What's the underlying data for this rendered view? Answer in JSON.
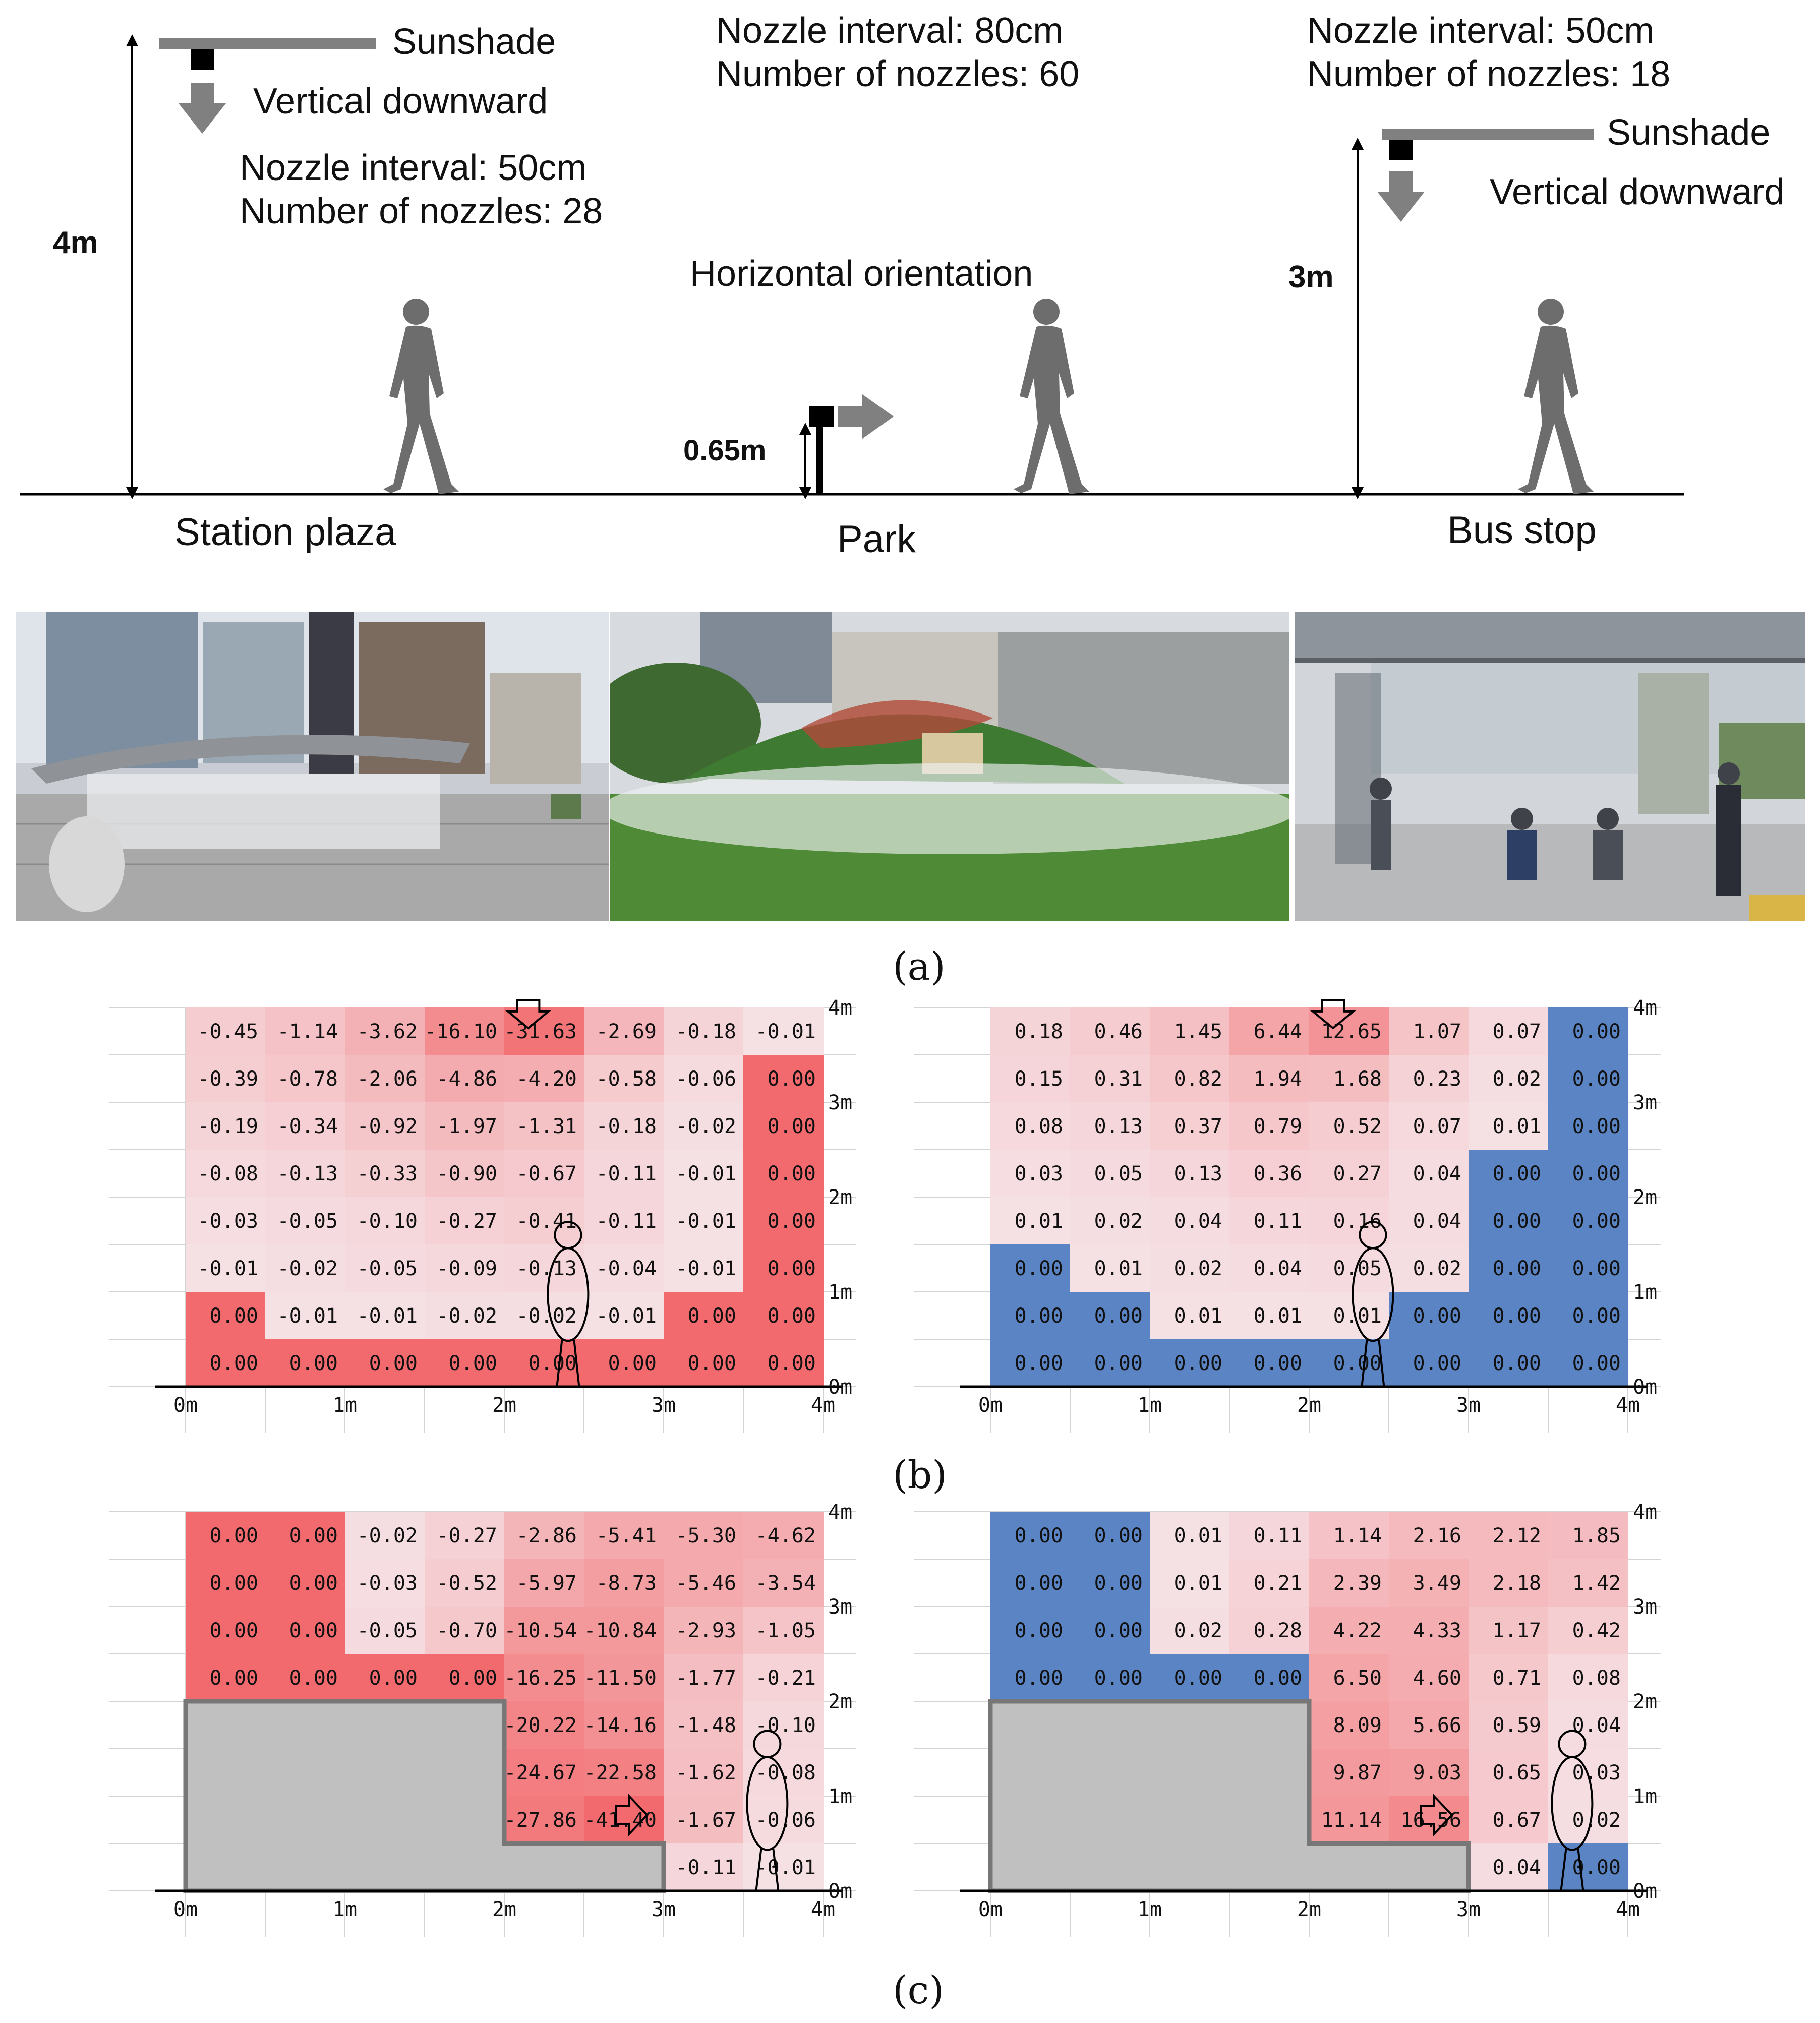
{
  "diagram": {
    "station": {
      "sunshade": "Sunshade",
      "direction": "Vertical downward",
      "interval": "Nozzle interval: 50cm",
      "count": "Number of nozzles: 28",
      "height": "4m",
      "name": "Station plaza"
    },
    "park": {
      "interval": "Nozzle interval: 80cm",
      "count": "Number of nozzles: 60",
      "direction": "Horizontal orientation",
      "height": "0.65m",
      "name": "Park"
    },
    "bus": {
      "interval": "Nozzle interval: 50cm",
      "count": "Number of nozzles: 18",
      "sunshade": "Sunshade",
      "direction": "Vertical downward",
      "height": "3m",
      "name": "Bus stop"
    }
  },
  "captions": {
    "a": "(a)",
    "b": "(b)",
    "c": "(c)"
  },
  "axis": {
    "x": [
      "0m",
      "1m",
      "2m",
      "3m",
      "4m"
    ],
    "y": [
      "0m",
      "1m",
      "2m",
      "3m",
      "4m"
    ]
  },
  "chart_data": [
    {
      "type": "heatmap",
      "panel": "b-left",
      "x": [
        "0m",
        "1m",
        "2m",
        "3m",
        "4m"
      ],
      "y": [
        "0m",
        "1m",
        "2m",
        "3m",
        "4m"
      ],
      "rows_top_to_bottom": [
        [
          -0.45,
          -1.14,
          -3.62,
          -16.1,
          -31.63,
          -2.69,
          -0.18,
          -0.01
        ],
        [
          -0.39,
          -0.78,
          -2.06,
          -4.86,
          -4.2,
          -0.58,
          -0.06,
          0.0
        ],
        [
          -0.19,
          -0.34,
          -0.92,
          -1.97,
          -1.31,
          -0.18,
          -0.02,
          0.0
        ],
        [
          -0.08,
          -0.13,
          -0.33,
          -0.9,
          -0.67,
          -0.11,
          -0.01,
          0.0
        ],
        [
          -0.03,
          -0.05,
          -0.1,
          -0.27,
          -0.41,
          -0.11,
          -0.01,
          0.0
        ],
        [
          -0.01,
          -0.02,
          -0.05,
          -0.09,
          -0.13,
          -0.04,
          -0.01,
          0.0
        ],
        [
          0.0,
          -0.01,
          -0.01,
          -0.02,
          -0.02,
          -0.01,
          0.0,
          0.0
        ],
        [
          0.0,
          0.0,
          0.0,
          0.0,
          0.0,
          0.0,
          0.0,
          0.0
        ]
      ],
      "positive_color": "#5b84c4",
      "negative_color": "#f26a6d"
    },
    {
      "type": "heatmap",
      "panel": "b-right",
      "x": [
        "0m",
        "1m",
        "2m",
        "3m",
        "4m"
      ],
      "y": [
        "0m",
        "1m",
        "2m",
        "3m",
        "4m"
      ],
      "rows_top_to_bottom": [
        [
          0.18,
          0.46,
          1.45,
          6.44,
          12.65,
          1.07,
          0.07,
          0.0
        ],
        [
          0.15,
          0.31,
          0.82,
          1.94,
          1.68,
          0.23,
          0.02,
          0.0
        ],
        [
          0.08,
          0.13,
          0.37,
          0.79,
          0.52,
          0.07,
          0.01,
          0.0
        ],
        [
          0.03,
          0.05,
          0.13,
          0.36,
          0.27,
          0.04,
          0.0,
          0.0
        ],
        [
          0.01,
          0.02,
          0.04,
          0.11,
          0.16,
          0.04,
          0.0,
          0.0
        ],
        [
          0.0,
          0.01,
          0.02,
          0.04,
          0.05,
          0.02,
          0.0,
          0.0
        ],
        [
          0.0,
          0.0,
          0.01,
          0.01,
          0.01,
          0.0,
          0.0,
          0.0
        ],
        [
          0.0,
          0.0,
          0.0,
          0.0,
          0.0,
          0.0,
          0.0,
          0.0
        ]
      ],
      "positive_color": "#f26a6d",
      "negative_color": "#5b84c4"
    },
    {
      "type": "heatmap",
      "panel": "c-left",
      "x": [
        "0m",
        "1m",
        "2m",
        "3m",
        "4m"
      ],
      "y": [
        "0m",
        "1m",
        "2m",
        "3m",
        "4m"
      ],
      "rows_top_to_bottom": [
        [
          0.0,
          0.0,
          -0.02,
          -0.27,
          -2.86,
          -5.41,
          -5.3,
          -4.62
        ],
        [
          0.0,
          0.0,
          -0.03,
          -0.52,
          -5.97,
          -8.73,
          -5.46,
          -3.54
        ],
        [
          0.0,
          0.0,
          -0.05,
          -0.7,
          -10.54,
          -10.84,
          -2.93,
          -1.05
        ],
        [
          0.0,
          0.0,
          0.0,
          0.0,
          -16.25,
          -11.5,
          -1.77,
          -0.21
        ],
        [
          null,
          null,
          null,
          null,
          -20.22,
          -14.16,
          -1.48,
          -0.1
        ],
        [
          null,
          null,
          null,
          null,
          -24.67,
          -22.58,
          -1.62,
          -0.08
        ],
        [
          null,
          null,
          null,
          null,
          -27.86,
          -41.4,
          -1.67,
          -0.06
        ],
        [
          null,
          null,
          null,
          null,
          null,
          null,
          -0.11,
          -0.01
        ]
      ],
      "positive_color": "#5b84c4",
      "negative_color": "#f26a6d"
    },
    {
      "type": "heatmap",
      "panel": "c-right",
      "x": [
        "0m",
        "1m",
        "2m",
        "3m",
        "4m"
      ],
      "y": [
        "0m",
        "1m",
        "2m",
        "3m",
        "4m"
      ],
      "rows_top_to_bottom": [
        [
          0.0,
          0.0,
          0.01,
          0.11,
          1.14,
          2.16,
          2.12,
          1.85
        ],
        [
          0.0,
          0.0,
          0.01,
          0.21,
          2.39,
          3.49,
          2.18,
          1.42
        ],
        [
          0.0,
          0.0,
          0.02,
          0.28,
          4.22,
          4.33,
          1.17,
          0.42
        ],
        [
          0.0,
          0.0,
          0.0,
          0.0,
          6.5,
          4.6,
          0.71,
          0.08
        ],
        [
          null,
          null,
          null,
          null,
          8.09,
          5.66,
          0.59,
          0.04
        ],
        [
          null,
          null,
          null,
          null,
          9.87,
          9.03,
          0.65,
          0.03
        ],
        [
          null,
          null,
          null,
          null,
          11.14,
          16.56,
          0.67,
          0.02
        ],
        [
          null,
          null,
          null,
          null,
          null,
          null,
          0.04,
          0.0
        ]
      ],
      "positive_color": "#f26a6d",
      "negative_color": "#5b84c4"
    }
  ]
}
